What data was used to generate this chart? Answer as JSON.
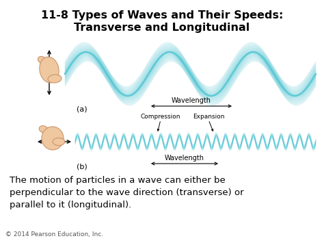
{
  "title_line1": "11-8 Types of Waves and Their Speeds:",
  "title_line2": "Transverse and Longitudinal",
  "title_fontsize": 11.5,
  "title_fontweight": "bold",
  "wave_color": "#5BC8D5",
  "background_color": "#ffffff",
  "label_a": "(a)",
  "label_b": "(b)",
  "wavelength_label": "Wavelength",
  "compression_label": "Compression",
  "expansion_label": "Expansion",
  "body_text_line1": "The motion of particles in a wave can either be",
  "body_text_line2": "perpendicular to the wave direction (transverse) or",
  "body_text_line3": "parallel to it (longitudinal).",
  "body_fontsize": 9.5,
  "copyright_text": "© 2014 Pearson Education, Inc.",
  "copyright_fontsize": 6.5,
  "hand_color": "#f0c8a0",
  "hand_edge_color": "#c8956a"
}
